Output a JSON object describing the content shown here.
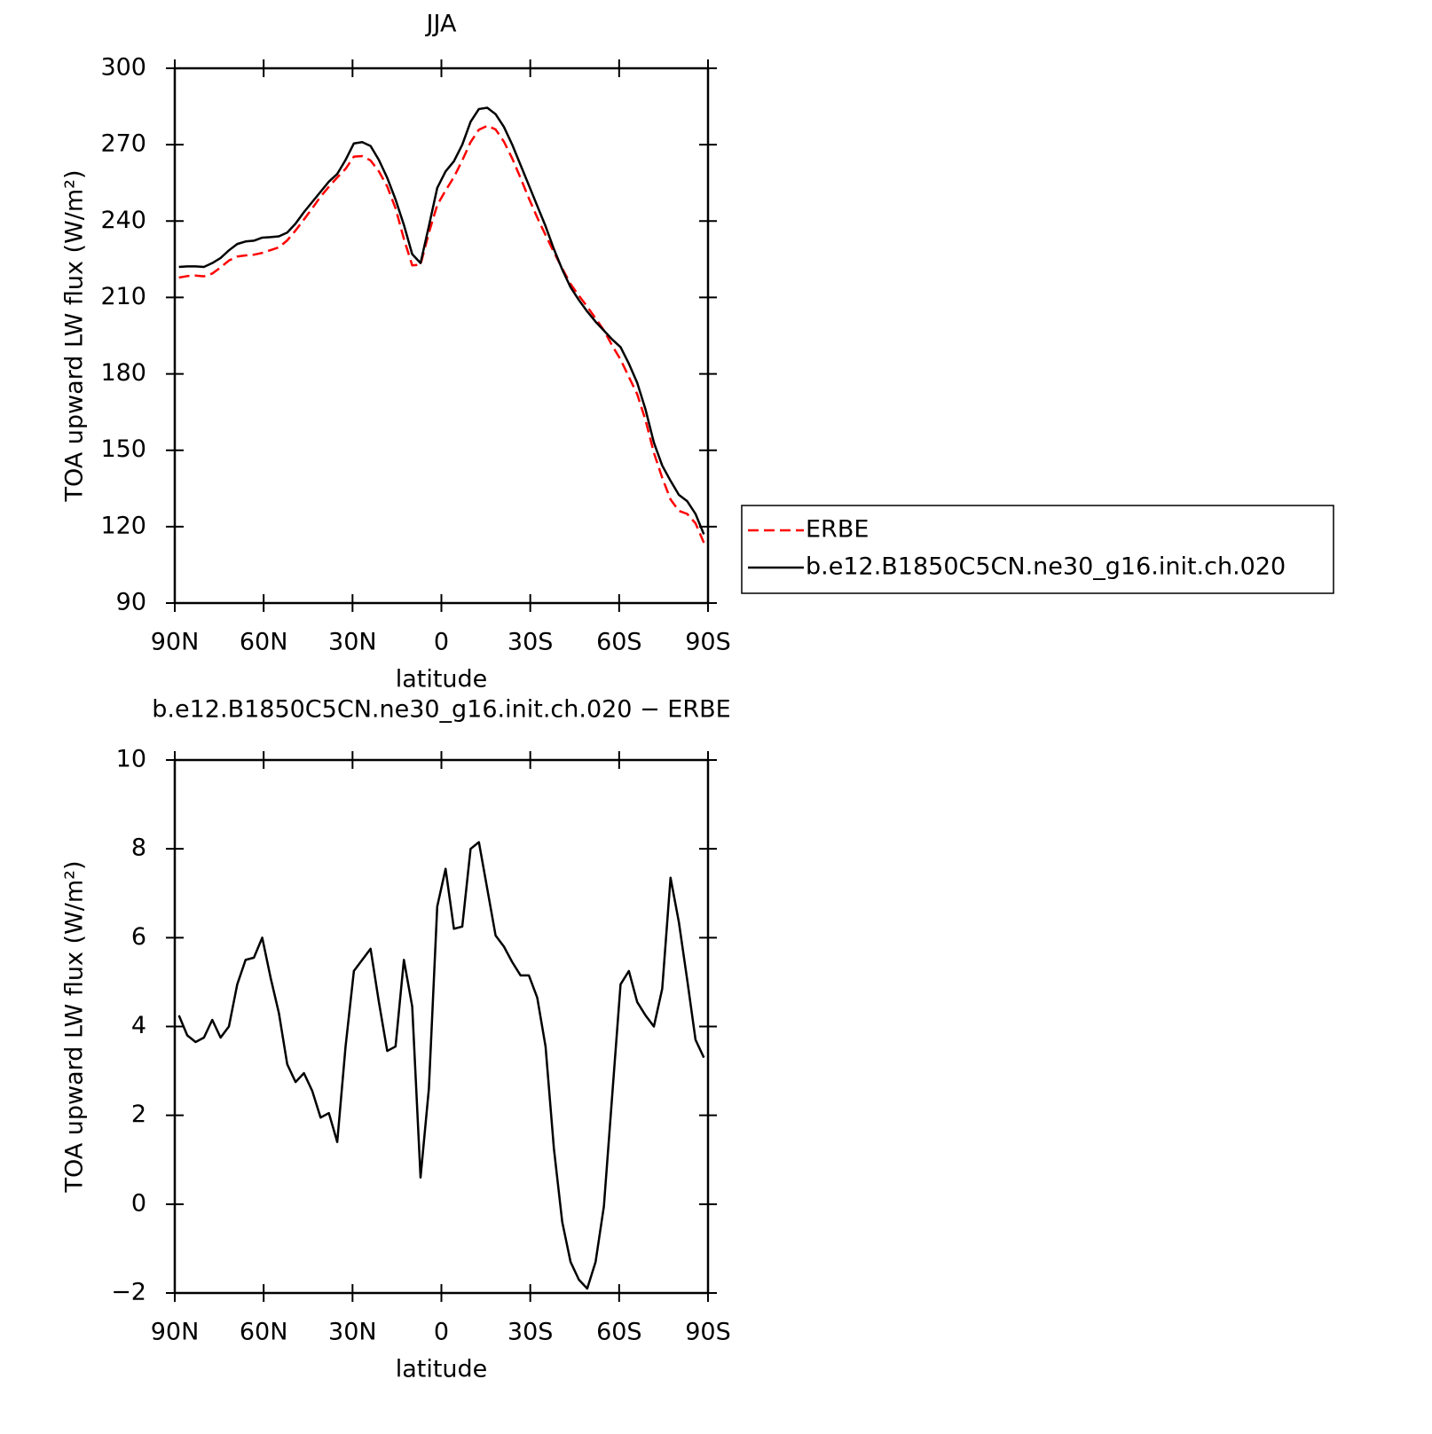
{
  "chart_data": [
    {
      "type": "line",
      "title": "JJA",
      "xlabel": "latitude",
      "ylabel": "TOA upward LW flux (W/m²)",
      "x": [
        88.6,
        85.79,
        82.98,
        80.16,
        77.35,
        74.54,
        71.73,
        68.91,
        66.1,
        63.29,
        60.48,
        57.66,
        54.85,
        52.04,
        49.23,
        46.41,
        43.6,
        40.79,
        37.98,
        35.16,
        32.35,
        29.54,
        26.73,
        23.91,
        21.1,
        18.29,
        15.48,
        12.66,
        9.85,
        7.04,
        4.23,
        1.41,
        -1.41,
        -4.23,
        -7.04,
        -9.85,
        -12.66,
        -15.48,
        -18.29,
        -21.1,
        -23.91,
        -26.73,
        -29.54,
        -32.35,
        -35.16,
        -37.98,
        -40.79,
        -43.6,
        -46.41,
        -49.23,
        -52.04,
        -54.85,
        -57.66,
        -60.48,
        -63.29,
        -66.1,
        -68.91,
        -71.73,
        -74.54,
        -77.35,
        -80.16,
        -82.98,
        -85.79,
        -88.6
      ],
      "xlim": [
        90,
        -90
      ],
      "xticks": [
        {
          "value": 90,
          "label": "90N"
        },
        {
          "value": 60,
          "label": "60N"
        },
        {
          "value": 30,
          "label": "30N"
        },
        0,
        {
          "value": -30,
          "label": "30S"
        },
        {
          "value": -60,
          "label": "60S"
        },
        {
          "value": -90,
          "label": "90S"
        }
      ],
      "ylim": [
        90,
        300
      ],
      "yticks": [
        90,
        120,
        150,
        180,
        210,
        240,
        270,
        300
      ],
      "legend": "right",
      "series": [
        {
          "name": "ERBE",
          "color": "#ff0000",
          "line_style": "dashed",
          "values": [
            217.8,
            218.4,
            218.6,
            218.3,
            219.4,
            221.8,
            224.5,
            226.1,
            226.5,
            226.8,
            227.5,
            228.6,
            229.7,
            232.4,
            236.3,
            240.6,
            245,
            249.6,
            253.5,
            257.1,
            260.5,
            265.3,
            265.5,
            263.8,
            259.5,
            253.6,
            245,
            233,
            222.6,
            222.9,
            235.4,
            246.3,
            252,
            257.3,
            263.8,
            271,
            275.9,
            277.4,
            276,
            271.2,
            264.6,
            256.9,
            248.9,
            241.4,
            234.5,
            227.8,
            221.4,
            215.3,
            210.7,
            206.4,
            201.8,
            197.1,
            191.1,
            185.6,
            178.8,
            172,
            161.8,
            149,
            139.2,
            130.7,
            126.2,
            125,
            121.3,
            113.7
          ]
        },
        {
          "name": "b.e12.B1850C5CN.ne30_g16.init.ch.020",
          "color": "#000000",
          "line_style": "solid",
          "values": [
            222,
            222.2,
            222.2,
            222,
            223.5,
            225.5,
            228.5,
            231,
            232,
            232.3,
            233.5,
            233.7,
            234,
            235.5,
            239,
            243.5,
            247.5,
            251.5,
            255.5,
            258.5,
            264,
            270.5,
            271,
            269.5,
            264,
            257,
            248.5,
            238.5,
            227,
            223.5,
            238,
            253,
            259.5,
            263.5,
            270,
            279,
            284,
            284.5,
            282,
            277,
            270,
            262,
            254,
            246,
            238,
            229,
            221,
            214,
            209,
            204.5,
            200.5,
            197,
            193.5,
            190.5,
            184,
            176.5,
            166,
            153,
            144,
            138,
            132.5,
            130,
            125,
            117
          ]
        }
      ]
    },
    {
      "type": "line",
      "title": "b.e12.B1850C5CN.ne30_g16.init.ch.020 − ERBE",
      "xlabel": "latitude",
      "ylabel": "TOA upward LW flux (W/m²)",
      "x": [
        88.6,
        85.79,
        82.98,
        80.16,
        77.35,
        74.54,
        71.73,
        68.91,
        66.1,
        63.29,
        60.48,
        57.66,
        54.85,
        52.04,
        49.23,
        46.41,
        43.6,
        40.79,
        37.98,
        35.16,
        32.35,
        29.54,
        26.73,
        23.91,
        21.1,
        18.29,
        15.48,
        12.66,
        9.85,
        7.04,
        4.23,
        1.41,
        -1.41,
        -4.23,
        -7.04,
        -9.85,
        -12.66,
        -15.48,
        -18.29,
        -21.1,
        -23.91,
        -26.73,
        -29.54,
        -32.35,
        -35.16,
        -37.98,
        -40.79,
        -43.6,
        -46.41,
        -49.23,
        -52.04,
        -54.85,
        -57.66,
        -60.48,
        -63.29,
        -66.1,
        -68.91,
        -71.73,
        -74.54,
        -77.35,
        -80.16,
        -82.98,
        -85.79,
        -88.6
      ],
      "xlim": [
        90,
        -90
      ],
      "xticks": [
        {
          "value": 90,
          "label": "90N"
        },
        {
          "value": 60,
          "label": "60N"
        },
        {
          "value": 30,
          "label": "30N"
        },
        0,
        {
          "value": -30,
          "label": "30S"
        },
        {
          "value": -60,
          "label": "60S"
        },
        {
          "value": -90,
          "label": "90S"
        }
      ],
      "ylim": [
        -2,
        10
      ],
      "yticks": [
        {
          "value": -2,
          "label": "−2"
        },
        0,
        2,
        4,
        6,
        8,
        10
      ],
      "series": [
        {
          "color": "#000000",
          "line_style": "solid",
          "values": [
            4.25,
            3.8,
            3.65,
            3.75,
            4.15,
            3.75,
            4.0,
            4.95,
            5.5,
            5.55,
            6.0,
            5.1,
            4.3,
            3.15,
            2.75,
            2.95,
            2.55,
            1.95,
            2.05,
            1.4,
            3.55,
            5.25,
            5.5,
            5.75,
            4.55,
            3.45,
            3.55,
            5.5,
            4.45,
            0.6,
            2.6,
            6.7,
            7.55,
            6.2,
            6.25,
            8.0,
            8.15,
            7.1,
            6.05,
            5.8,
            5.45,
            5.15,
            5.15,
            4.65,
            3.55,
            1.25,
            -0.4,
            -1.3,
            -1.7,
            -1.9,
            -1.3,
            -0.05,
            2.45,
            4.95,
            5.25,
            4.55,
            4.25,
            4.0,
            4.85,
            7.35,
            6.35,
            5.05,
            3.7,
            3.3
          ]
        }
      ]
    }
  ]
}
